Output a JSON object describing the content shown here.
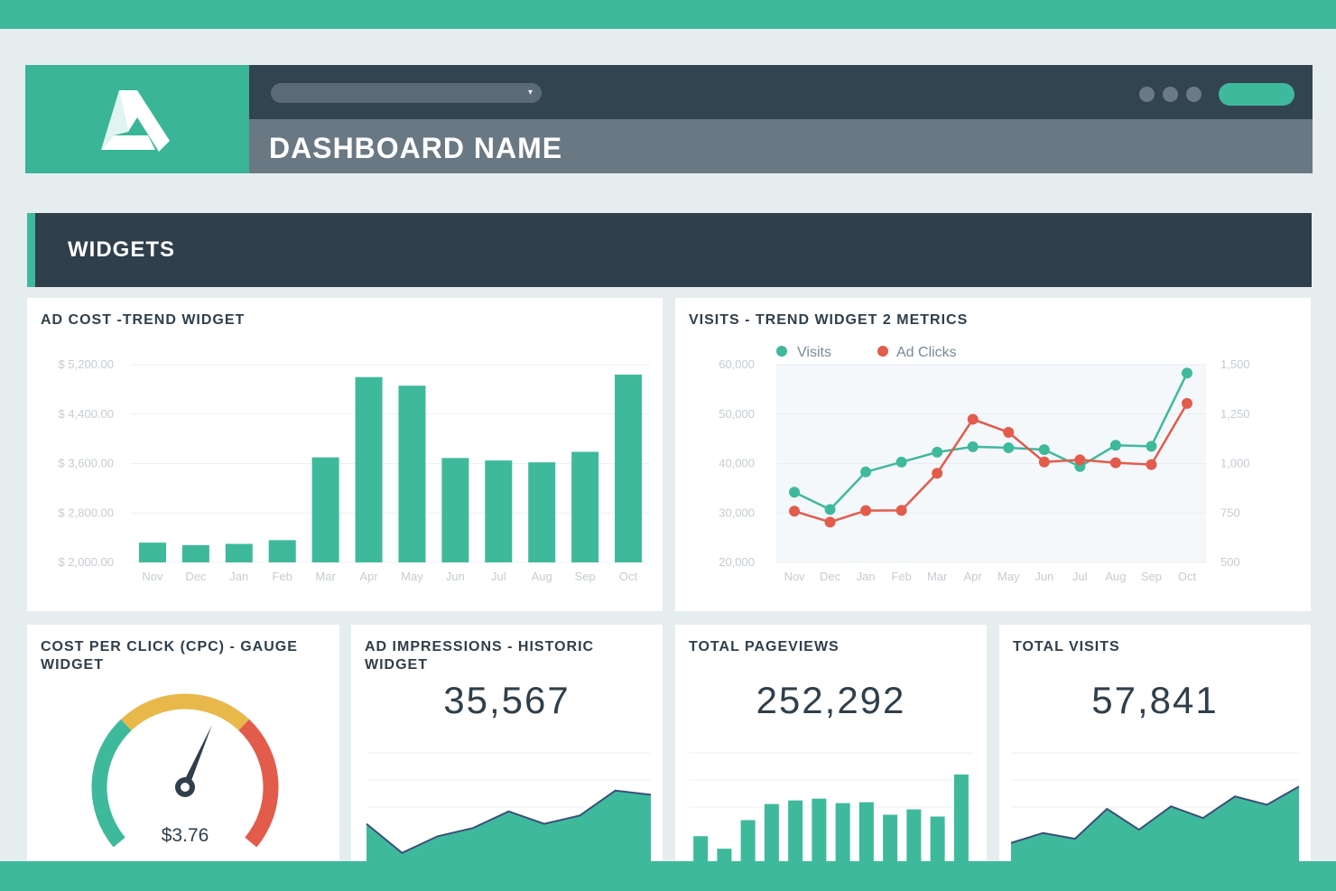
{
  "header": {
    "dashboard_title": "DASHBOARD NAME",
    "logo_icon": "triangle-logo-icon",
    "dashboard_select_icon": "chevron-down-icon",
    "menu_icon": "more-dots-icon"
  },
  "widgets_section": {
    "title": "WIDGETS"
  },
  "colors": {
    "accent": "#3fb99c",
    "dark": "#2f3f4b",
    "red": "#e35b4b",
    "yellow": "#e8b84a"
  },
  "ad_cost": {
    "title": "AD COST -TREND WIDGET",
    "chart_data": {
      "type": "bar",
      "categories": [
        "Nov",
        "Dec",
        "Jan",
        "Feb",
        "Mar",
        "Apr",
        "May",
        "Jun",
        "Jul",
        "Aug",
        "Sep",
        "Oct"
      ],
      "values": [
        2320,
        2280,
        2300,
        2360,
        3700,
        5000,
        4860,
        3690,
        3650,
        3620,
        3790,
        5040
      ],
      "ylim": [
        2000,
        5200
      ],
      "y_ticks": [
        "$ 5,200.00",
        "$ 4,400.00",
        "$ 3,600.00",
        "$ 2,800.00",
        "$ 2,000.00"
      ],
      "y_tick_values": [
        5200,
        4400,
        3600,
        2800,
        2000
      ],
      "grid": true,
      "color": "#3fb99c"
    }
  },
  "visits_trend": {
    "title": "VISITS - TREND WIDGET 2 METRICS",
    "chart_data": {
      "type": "line",
      "categories": [
        "Nov",
        "Dec",
        "Jan",
        "Feb",
        "Mar",
        "Apr",
        "May",
        "Jun",
        "Jul",
        "Aug",
        "Sep",
        "Oct"
      ],
      "series": [
        {
          "name": "Visits",
          "axis": "left",
          "color": "#3fb99c",
          "values": [
            34200,
            30700,
            38300,
            40300,
            42300,
            43400,
            43200,
            42800,
            39400,
            43700,
            43500,
            58300
          ]
        },
        {
          "name": "Ad Clicks",
          "axis": "right",
          "color": "#e35b4b",
          "values": [
            759,
            704,
            762,
            763,
            951,
            1224,
            1158,
            1008,
            1019,
            1004,
            995,
            1304
          ]
        }
      ],
      "ylim_left": [
        20000,
        60000
      ],
      "ylim_right": [
        500,
        1500
      ],
      "y_ticks_left": [
        "60,000",
        "50,000",
        "40,000",
        "30,000",
        "20,000"
      ],
      "y_ticks_right": [
        "1,500",
        "1,250",
        "1,000",
        "750",
        "500"
      ],
      "legend_position": "top-left",
      "grid": true
    }
  },
  "cpc_gauge": {
    "title": "COST PER CLICK (CPC) - GAUGE WIDGET",
    "value_label": "$3.76",
    "needle_fraction": 0.59,
    "segments": [
      {
        "color": "#3fb99c"
      },
      {
        "color": "#e8b84a"
      },
      {
        "color": "#e35b4b"
      }
    ]
  },
  "ad_impressions": {
    "title": "AD IMPRESSIONS - HISTORIC WIDGET",
    "value": "35,567",
    "chart_data": {
      "type": "area",
      "values": [
        45,
        10,
        30,
        40,
        60,
        45,
        55,
        85,
        80
      ]
    }
  },
  "total_pageviews": {
    "title": "TOTAL PAGEVIEWS",
    "value": "252,292",
    "chart_data": {
      "type": "bar",
      "values": [
        28,
        14,
        46,
        64,
        68,
        70,
        65,
        66,
        52,
        58,
        50,
        97
      ]
    }
  },
  "total_visits": {
    "title": "TOTAL VISITS",
    "value": "57,841",
    "chart_data": {
      "type": "area",
      "values": [
        22,
        34,
        27,
        63,
        38,
        66,
        52,
        78,
        68,
        90
      ]
    }
  }
}
